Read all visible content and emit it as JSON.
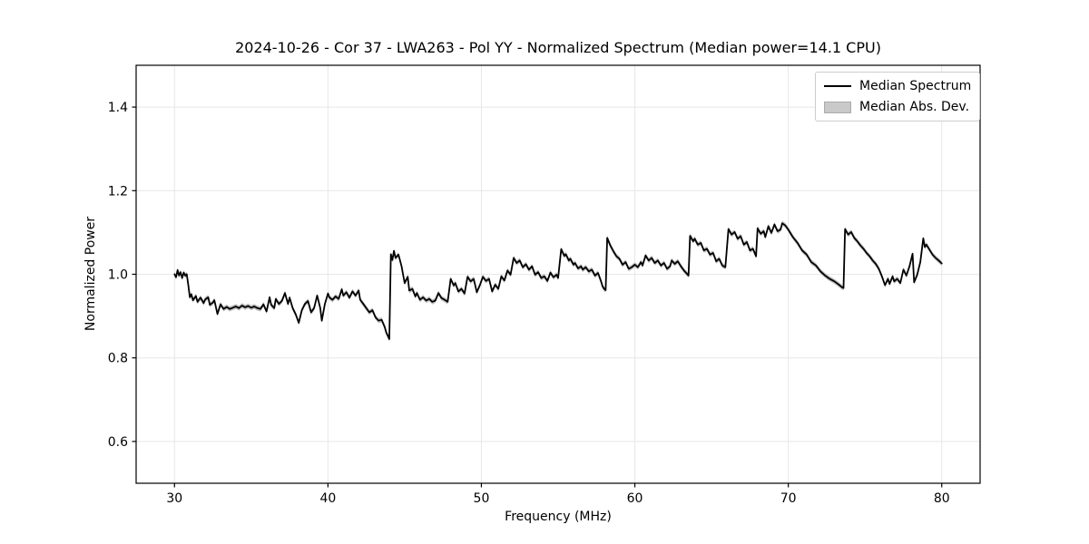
{
  "chart_data": {
    "type": "line",
    "title": "2024-10-26 - Cor 37 - LWA263 - Pol YY - Normalized Spectrum (Median power=14.1 CPU)",
    "xlabel": "Frequency (MHz)",
    "ylabel": "Normalized Power",
    "xlim": [
      27.5,
      82.5
    ],
    "ylim": [
      0.5,
      1.5
    ],
    "xticks": [
      30,
      40,
      50,
      60,
      70,
      80
    ],
    "yticks": [
      0.6,
      0.8,
      1.0,
      1.2,
      1.4
    ],
    "grid": true,
    "colors": {
      "line": "#000000",
      "band": "#c0c0c0",
      "gridline": "#e7e7e7",
      "spine": "#000000",
      "text": "#000000",
      "background": "#ffffff"
    },
    "legend": {
      "position": "upper right",
      "entries": [
        {
          "label": "Median Spectrum",
          "type": "line",
          "color": "#000000"
        },
        {
          "label": "Median Abs. Dev.",
          "type": "patch",
          "color": "#c9c9c9"
        }
      ]
    },
    "mad_band": {
      "name": "Median Abs. Dev.",
      "halfwidth": 0.006
    },
    "series": [
      {
        "name": "Median Spectrum",
        "color": "#000000",
        "linewidth": 1.8,
        "points": [
          [
            30.0,
            1.0
          ],
          [
            30.1,
            0.993
          ],
          [
            30.2,
            1.01
          ],
          [
            30.3,
            0.997
          ],
          [
            30.4,
            1.005
          ],
          [
            30.5,
            0.991
          ],
          [
            30.6,
            1.004
          ],
          [
            30.7,
            0.997
          ],
          [
            30.8,
            1.0
          ],
          [
            30.9,
            0.974
          ],
          [
            31.0,
            0.945
          ],
          [
            31.1,
            0.952
          ],
          [
            31.2,
            0.938
          ],
          [
            31.4,
            0.948
          ],
          [
            31.5,
            0.934
          ],
          [
            31.7,
            0.944
          ],
          [
            31.9,
            0.931
          ],
          [
            32.0,
            0.94
          ],
          [
            32.2,
            0.945
          ],
          [
            32.3,
            0.927
          ],
          [
            32.5,
            0.932
          ],
          [
            32.6,
            0.938
          ],
          [
            32.8,
            0.905
          ],
          [
            33.0,
            0.928
          ],
          [
            33.2,
            0.917
          ],
          [
            33.4,
            0.922
          ],
          [
            33.6,
            0.917
          ],
          [
            33.8,
            0.92
          ],
          [
            34.0,
            0.923
          ],
          [
            34.2,
            0.919
          ],
          [
            34.4,
            0.925
          ],
          [
            34.6,
            0.921
          ],
          [
            34.8,
            0.924
          ],
          [
            35.0,
            0.92
          ],
          [
            35.2,
            0.923
          ],
          [
            35.4,
            0.919
          ],
          [
            35.6,
            0.917
          ],
          [
            35.8,
            0.928
          ],
          [
            36.0,
            0.911
          ],
          [
            36.2,
            0.945
          ],
          [
            36.3,
            0.927
          ],
          [
            36.5,
            0.919
          ],
          [
            36.6,
            0.941
          ],
          [
            36.8,
            0.929
          ],
          [
            37.0,
            0.936
          ],
          [
            37.2,
            0.955
          ],
          [
            37.4,
            0.929
          ],
          [
            37.5,
            0.944
          ],
          [
            37.7,
            0.919
          ],
          [
            37.9,
            0.904
          ],
          [
            38.1,
            0.884
          ],
          [
            38.3,
            0.914
          ],
          [
            38.5,
            0.929
          ],
          [
            38.7,
            0.936
          ],
          [
            38.9,
            0.909
          ],
          [
            39.1,
            0.919
          ],
          [
            39.3,
            0.949
          ],
          [
            39.5,
            0.919
          ],
          [
            39.6,
            0.889
          ],
          [
            39.8,
            0.929
          ],
          [
            40.0,
            0.954
          ],
          [
            40.1,
            0.944
          ],
          [
            40.3,
            0.939
          ],
          [
            40.5,
            0.947
          ],
          [
            40.7,
            0.941
          ],
          [
            40.9,
            0.964
          ],
          [
            41.0,
            0.949
          ],
          [
            41.2,
            0.957
          ],
          [
            41.4,
            0.944
          ],
          [
            41.6,
            0.959
          ],
          [
            41.8,
            0.949
          ],
          [
            42.0,
            0.961
          ],
          [
            42.1,
            0.939
          ],
          [
            42.3,
            0.929
          ],
          [
            42.5,
            0.919
          ],
          [
            42.7,
            0.909
          ],
          [
            42.9,
            0.914
          ],
          [
            43.1,
            0.897
          ],
          [
            43.3,
            0.889
          ],
          [
            43.5,
            0.891
          ],
          [
            43.7,
            0.874
          ],
          [
            43.8,
            0.861
          ],
          [
            44.0,
            0.845
          ],
          [
            44.1,
            1.048
          ],
          [
            44.2,
            1.034
          ],
          [
            44.3,
            1.056
          ],
          [
            44.4,
            1.039
          ],
          [
            44.6,
            1.047
          ],
          [
            44.8,
            1.019
          ],
          [
            44.9,
            0.999
          ],
          [
            45.0,
            0.979
          ],
          [
            45.2,
            0.994
          ],
          [
            45.3,
            0.961
          ],
          [
            45.5,
            0.965
          ],
          [
            45.7,
            0.947
          ],
          [
            45.8,
            0.955
          ],
          [
            46.0,
            0.939
          ],
          [
            46.2,
            0.945
          ],
          [
            46.4,
            0.937
          ],
          [
            46.6,
            0.941
          ],
          [
            46.8,
            0.934
          ],
          [
            47.0,
            0.937
          ],
          [
            47.2,
            0.955
          ],
          [
            47.4,
            0.943
          ],
          [
            47.6,
            0.939
          ],
          [
            47.8,
            0.934
          ],
          [
            48.0,
            0.989
          ],
          [
            48.2,
            0.973
          ],
          [
            48.3,
            0.979
          ],
          [
            48.5,
            0.959
          ],
          [
            48.7,
            0.965
          ],
          [
            48.9,
            0.954
          ],
          [
            49.1,
            0.994
          ],
          [
            49.3,
            0.983
          ],
          [
            49.5,
            0.989
          ],
          [
            49.7,
            0.957
          ],
          [
            49.9,
            0.974
          ],
          [
            50.1,
            0.994
          ],
          [
            50.3,
            0.984
          ],
          [
            50.5,
            0.989
          ],
          [
            50.7,
            0.959
          ],
          [
            50.9,
            0.975
          ],
          [
            51.1,
            0.965
          ],
          [
            51.3,
            0.995
          ],
          [
            51.5,
            0.985
          ],
          [
            51.7,
            1.009
          ],
          [
            51.9,
            0.999
          ],
          [
            52.1,
            1.039
          ],
          [
            52.3,
            1.027
          ],
          [
            52.5,
            1.033
          ],
          [
            52.7,
            1.017
          ],
          [
            52.9,
            1.024
          ],
          [
            53.1,
            1.011
          ],
          [
            53.3,
            1.019
          ],
          [
            53.5,
            0.999
          ],
          [
            53.7,
            1.005
          ],
          [
            53.9,
            0.991
          ],
          [
            54.1,
            0.995
          ],
          [
            54.3,
            0.984
          ],
          [
            54.5,
            1.004
          ],
          [
            54.7,
            0.993
          ],
          [
            54.9,
            0.999
          ],
          [
            55.0,
            0.991
          ],
          [
            55.2,
            1.06
          ],
          [
            55.4,
            1.044
          ],
          [
            55.5,
            1.048
          ],
          [
            55.7,
            1.033
          ],
          [
            55.8,
            1.037
          ],
          [
            56.0,
            1.023
          ],
          [
            56.1,
            1.027
          ],
          [
            56.3,
            1.014
          ],
          [
            56.5,
            1.019
          ],
          [
            56.6,
            1.011
          ],
          [
            56.8,
            1.017
          ],
          [
            57.0,
            1.007
          ],
          [
            57.2,
            1.011
          ],
          [
            57.4,
            0.997
          ],
          [
            57.6,
            1.003
          ],
          [
            57.8,
            0.983
          ],
          [
            57.9,
            0.971
          ],
          [
            58.0,
            0.965
          ],
          [
            58.1,
            0.962
          ],
          [
            58.2,
            1.087
          ],
          [
            58.4,
            1.069
          ],
          [
            58.6,
            1.055
          ],
          [
            58.8,
            1.043
          ],
          [
            59.0,
            1.037
          ],
          [
            59.2,
            1.023
          ],
          [
            59.4,
            1.029
          ],
          [
            59.6,
            1.013
          ],
          [
            59.8,
            1.017
          ],
          [
            60.0,
            1.023
          ],
          [
            60.2,
            1.017
          ],
          [
            60.4,
            1.029
          ],
          [
            60.5,
            1.021
          ],
          [
            60.7,
            1.045
          ],
          [
            60.9,
            1.033
          ],
          [
            61.1,
            1.039
          ],
          [
            61.3,
            1.027
          ],
          [
            61.5,
            1.033
          ],
          [
            61.7,
            1.021
          ],
          [
            61.9,
            1.027
          ],
          [
            62.1,
            1.013
          ],
          [
            62.3,
            1.019
          ],
          [
            62.4,
            1.033
          ],
          [
            62.6,
            1.025
          ],
          [
            62.8,
            1.031
          ],
          [
            63.0,
            1.019
          ],
          [
            63.2,
            1.009
          ],
          [
            63.4,
            1.001
          ],
          [
            63.5,
            0.997
          ],
          [
            63.6,
            1.092
          ],
          [
            63.8,
            1.079
          ],
          [
            63.9,
            1.085
          ],
          [
            64.1,
            1.071
          ],
          [
            64.3,
            1.075
          ],
          [
            64.5,
            1.057
          ],
          [
            64.7,
            1.061
          ],
          [
            64.9,
            1.047
          ],
          [
            65.1,
            1.051
          ],
          [
            65.3,
            1.031
          ],
          [
            65.5,
            1.037
          ],
          [
            65.7,
            1.021
          ],
          [
            65.9,
            1.017
          ],
          [
            66.1,
            1.108
          ],
          [
            66.3,
            1.095
          ],
          [
            66.5,
            1.101
          ],
          [
            66.7,
            1.085
          ],
          [
            66.9,
            1.091
          ],
          [
            67.1,
            1.071
          ],
          [
            67.3,
            1.077
          ],
          [
            67.5,
            1.057
          ],
          [
            67.7,
            1.061
          ],
          [
            67.9,
            1.043
          ],
          [
            68.0,
            1.11
          ],
          [
            68.2,
            1.097
          ],
          [
            68.4,
            1.103
          ],
          [
            68.5,
            1.089
          ],
          [
            68.7,
            1.115
          ],
          [
            68.9,
            1.099
          ],
          [
            69.1,
            1.119
          ],
          [
            69.3,
            1.103
          ],
          [
            69.5,
            1.107
          ],
          [
            69.6,
            1.122
          ],
          [
            69.8,
            1.117
          ],
          [
            70.0,
            1.107
          ],
          [
            70.3,
            1.089
          ],
          [
            70.6,
            1.075
          ],
          [
            70.9,
            1.057
          ],
          [
            71.2,
            1.047
          ],
          [
            71.5,
            1.029
          ],
          [
            71.8,
            1.021
          ],
          [
            72.1,
            1.007
          ],
          [
            72.4,
            0.997
          ],
          [
            72.7,
            0.989
          ],
          [
            73.0,
            0.983
          ],
          [
            73.3,
            0.975
          ],
          [
            73.5,
            0.969
          ],
          [
            73.6,
            0.967
          ],
          [
            73.7,
            1.108
          ],
          [
            73.9,
            1.095
          ],
          [
            74.1,
            1.101
          ],
          [
            74.3,
            1.087
          ],
          [
            74.5,
            1.079
          ],
          [
            74.7,
            1.069
          ],
          [
            74.9,
            1.061
          ],
          [
            75.1,
            1.051
          ],
          [
            75.3,
            1.043
          ],
          [
            75.5,
            1.033
          ],
          [
            75.7,
            1.025
          ],
          [
            75.9,
            1.013
          ],
          [
            76.1,
            0.995
          ],
          [
            76.3,
            0.974
          ],
          [
            76.5,
            0.989
          ],
          [
            76.6,
            0.977
          ],
          [
            76.8,
            0.995
          ],
          [
            76.9,
            0.983
          ],
          [
            77.1,
            0.989
          ],
          [
            77.3,
            0.979
          ],
          [
            77.5,
            1.011
          ],
          [
            77.7,
            0.997
          ],
          [
            77.9,
            1.019
          ],
          [
            78.1,
            1.049
          ],
          [
            78.2,
            0.981
          ],
          [
            78.4,
            0.999
          ],
          [
            78.6,
            1.029
          ],
          [
            78.8,
            1.086
          ],
          [
            78.9,
            1.065
          ],
          [
            79.0,
            1.071
          ],
          [
            79.2,
            1.059
          ],
          [
            79.4,
            1.047
          ],
          [
            79.6,
            1.039
          ],
          [
            79.8,
            1.033
          ],
          [
            80.0,
            1.026
          ]
        ]
      }
    ]
  }
}
